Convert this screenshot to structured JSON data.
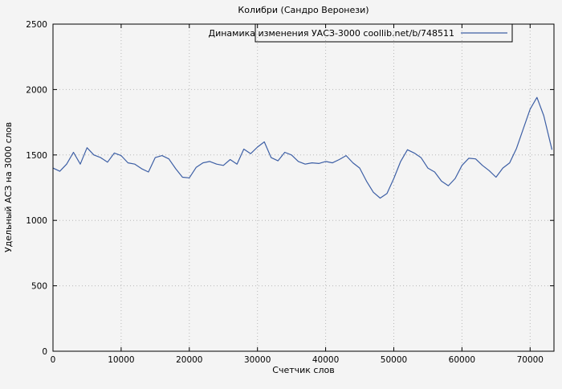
{
  "chart_data": {
    "type": "line",
    "title": "Колибри (Сандро Веронези)",
    "xlabel": "Счетчик слов",
    "ylabel": "Удельный АСЗ на 3000 слов",
    "legend": "Динамика изменения УАСЗ-3000 coollib.net/b/748511",
    "legend_position": "top-center-in-plot",
    "grid": true,
    "line_color": "#3d5fa5",
    "grid_color": "#b8b8b8",
    "border_color": "#000000",
    "background_color": "#f4f4f4",
    "xlim": [
      0,
      73500
    ],
    "ylim": [
      0,
      2500
    ],
    "xticks": [
      0,
      10000,
      20000,
      30000,
      40000,
      50000,
      60000,
      70000
    ],
    "yticks": [
      0,
      500,
      1000,
      1500,
      2000,
      2500
    ],
    "series": [
      {
        "name": "Динамика изменения УАСЗ-3000 coollib.net/b/748511",
        "x": [
          0,
          1000,
          2000,
          3000,
          4000,
          5000,
          6000,
          7000,
          8000,
          9000,
          10000,
          11000,
          12000,
          13000,
          14000,
          15000,
          16000,
          17000,
          18000,
          19000,
          20000,
          21000,
          22000,
          23000,
          24000,
          25000,
          26000,
          27000,
          28000,
          29000,
          30000,
          31000,
          32000,
          33000,
          34000,
          35000,
          36000,
          37000,
          38000,
          39000,
          40000,
          41000,
          42000,
          43000,
          44000,
          45000,
          46000,
          47000,
          48000,
          49000,
          50000,
          51000,
          52000,
          53000,
          54000,
          55000,
          56000,
          57000,
          58000,
          59000,
          60000,
          61000,
          62000,
          63000,
          64000,
          65000,
          66000,
          67000,
          68000,
          69000,
          70000,
          71000,
          72000,
          73200
        ],
        "y": [
          1400,
          1375,
          1430,
          1520,
          1430,
          1555,
          1500,
          1480,
          1445,
          1515,
          1495,
          1440,
          1430,
          1395,
          1370,
          1480,
          1495,
          1470,
          1395,
          1330,
          1325,
          1405,
          1440,
          1450,
          1430,
          1420,
          1465,
          1430,
          1545,
          1510,
          1560,
          1600,
          1480,
          1455,
          1520,
          1500,
          1450,
          1430,
          1440,
          1435,
          1450,
          1440,
          1465,
          1495,
          1440,
          1400,
          1300,
          1215,
          1170,
          1205,
          1320,
          1450,
          1540,
          1515,
          1480,
          1400,
          1370,
          1300,
          1265,
          1320,
          1420,
          1475,
          1470,
          1420,
          1380,
          1330,
          1400,
          1440,
          1550,
          1700,
          1850,
          1940,
          1800,
          1540
        ]
      }
    ]
  }
}
